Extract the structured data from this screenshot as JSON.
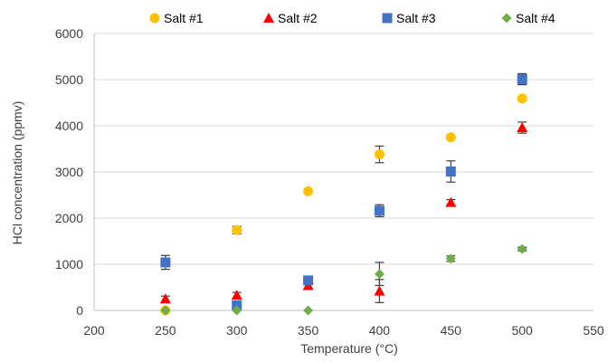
{
  "chart_data": {
    "type": "scatter",
    "xlabel": "Temperature (°C)",
    "ylabel": "HCl concentration (ppmv)",
    "xlim": [
      200,
      550
    ],
    "ylim": [
      0,
      6000
    ],
    "xticks": [
      200,
      250,
      300,
      350,
      400,
      450,
      500,
      550
    ],
    "yticks": [
      0,
      1000,
      2000,
      3000,
      4000,
      5000,
      6000
    ],
    "grid": "horizontal",
    "legend_position": "top",
    "series": [
      {
        "name": "Salt #1",
        "marker": "circle",
        "color": "#FFC000",
        "x": [
          250,
          300,
          350,
          400,
          450,
          500
        ],
        "y": [
          0,
          1740,
          2580,
          3380,
          3750,
          4590
        ],
        "err": [
          0,
          80,
          0,
          180,
          0,
          0
        ]
      },
      {
        "name": "Salt #2",
        "marker": "triangle",
        "color": "#FF0000",
        "x": [
          250,
          300,
          350,
          400,
          450,
          500
        ],
        "y": [
          250,
          330,
          540,
          420,
          2340,
          3960
        ],
        "err": [
          60,
          60,
          0,
          250,
          60,
          120
        ]
      },
      {
        "name": "Salt #3",
        "marker": "square",
        "color": "#4472C4",
        "x": [
          250,
          300,
          350,
          400,
          450,
          500
        ],
        "y": [
          1040,
          110,
          650,
          2160,
          3010,
          5010
        ],
        "err": [
          150,
          80,
          0,
          130,
          230,
          120
        ]
      },
      {
        "name": "Salt #4",
        "marker": "diamond",
        "color": "#70AD47",
        "x": [
          250,
          300,
          350,
          400,
          450,
          500
        ],
        "y": [
          0,
          0,
          0,
          790,
          1120,
          1330
        ],
        "err": [
          0,
          0,
          0,
          250,
          60,
          40
        ]
      }
    ]
  }
}
